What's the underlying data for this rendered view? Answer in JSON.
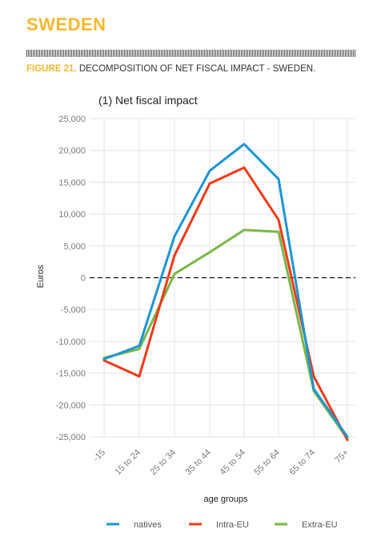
{
  "header": {
    "country": "SWEDEN",
    "figure_lead": "FIGURE 21.",
    "figure_text": " DECOMPOSITION OF NET FISCAL IMPACT - SWEDEN."
  },
  "chart_data": {
    "type": "line",
    "title": "(1) Net fiscal impact",
    "xlabel": "age groups",
    "ylabel": "Euros",
    "categories": [
      "-15",
      "15 to 24",
      "25 to 34",
      "35 to 44",
      "45 to 54",
      "55 to 64",
      "65 to 74",
      "75+"
    ],
    "ylim": [
      -25000,
      25000
    ],
    "yticks": [
      25000,
      20000,
      15000,
      10000,
      5000,
      0,
      -5000,
      -10000,
      -15000,
      -20000,
      -25000
    ],
    "ytick_labels": [
      "25,000",
      "20,000",
      "15,000",
      "10,000",
      "5,000",
      "0",
      "-5,000",
      "-10,000",
      "-15,000",
      "-20,000",
      "-25,000"
    ],
    "zero_line": "dashed",
    "grid": true,
    "legend_position": "bottom",
    "series": [
      {
        "name": "natives",
        "color": "#1a96d4",
        "values": [
          -12800,
          -10700,
          6500,
          16800,
          21000,
          15500,
          -17500,
          -25000
        ]
      },
      {
        "name": "Intra-EU",
        "color": "#f03a17",
        "values": [
          -13000,
          -15500,
          3500,
          14800,
          17300,
          9100,
          -15500,
          -25500
        ]
      },
      {
        "name": "Extra-EU",
        "color": "#7ab648",
        "values": [
          -12600,
          -11200,
          600,
          4000,
          7500,
          7200,
          -17800,
          -25300
        ]
      }
    ]
  }
}
